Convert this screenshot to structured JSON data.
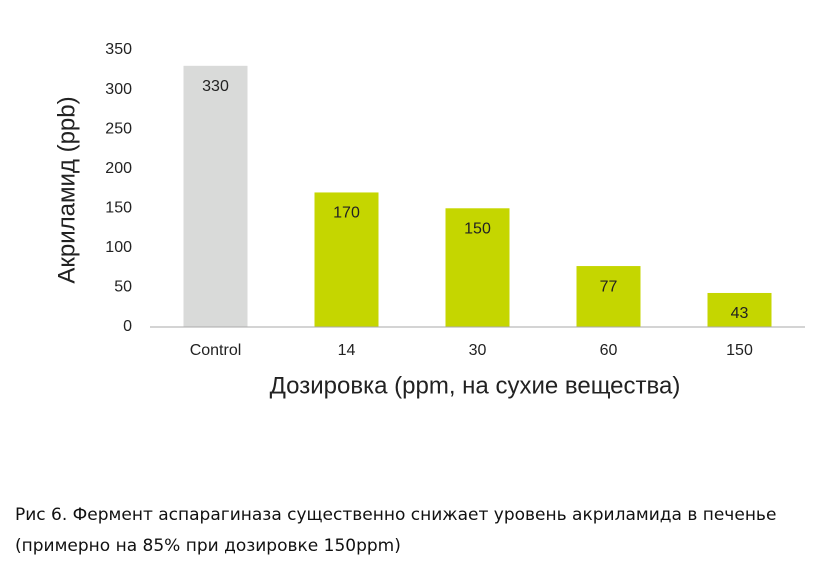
{
  "chart_data": {
    "type": "bar",
    "categories": [
      "Control",
      "14",
      "30",
      "60",
      "150"
    ],
    "values": [
      330,
      170,
      150,
      77,
      43
    ],
    "colors": [
      "#d9dad9",
      "#c5d600",
      "#c5d600",
      "#c5d600",
      "#c5d600"
    ],
    "ylim": [
      0,
      350
    ],
    "yticks": [
      0,
      50,
      100,
      150,
      200,
      250,
      300,
      350
    ],
    "ylabel": "Акриламид (ppb)",
    "xlabel": "Дозировка (ppm, на сухие вещества)",
    "grid": false
  },
  "caption": "Рис 6. Фермент аспарагиназа существенно снижает уровень акриламида в печенье (примерно на 85% при дозировке 150ppm)"
}
